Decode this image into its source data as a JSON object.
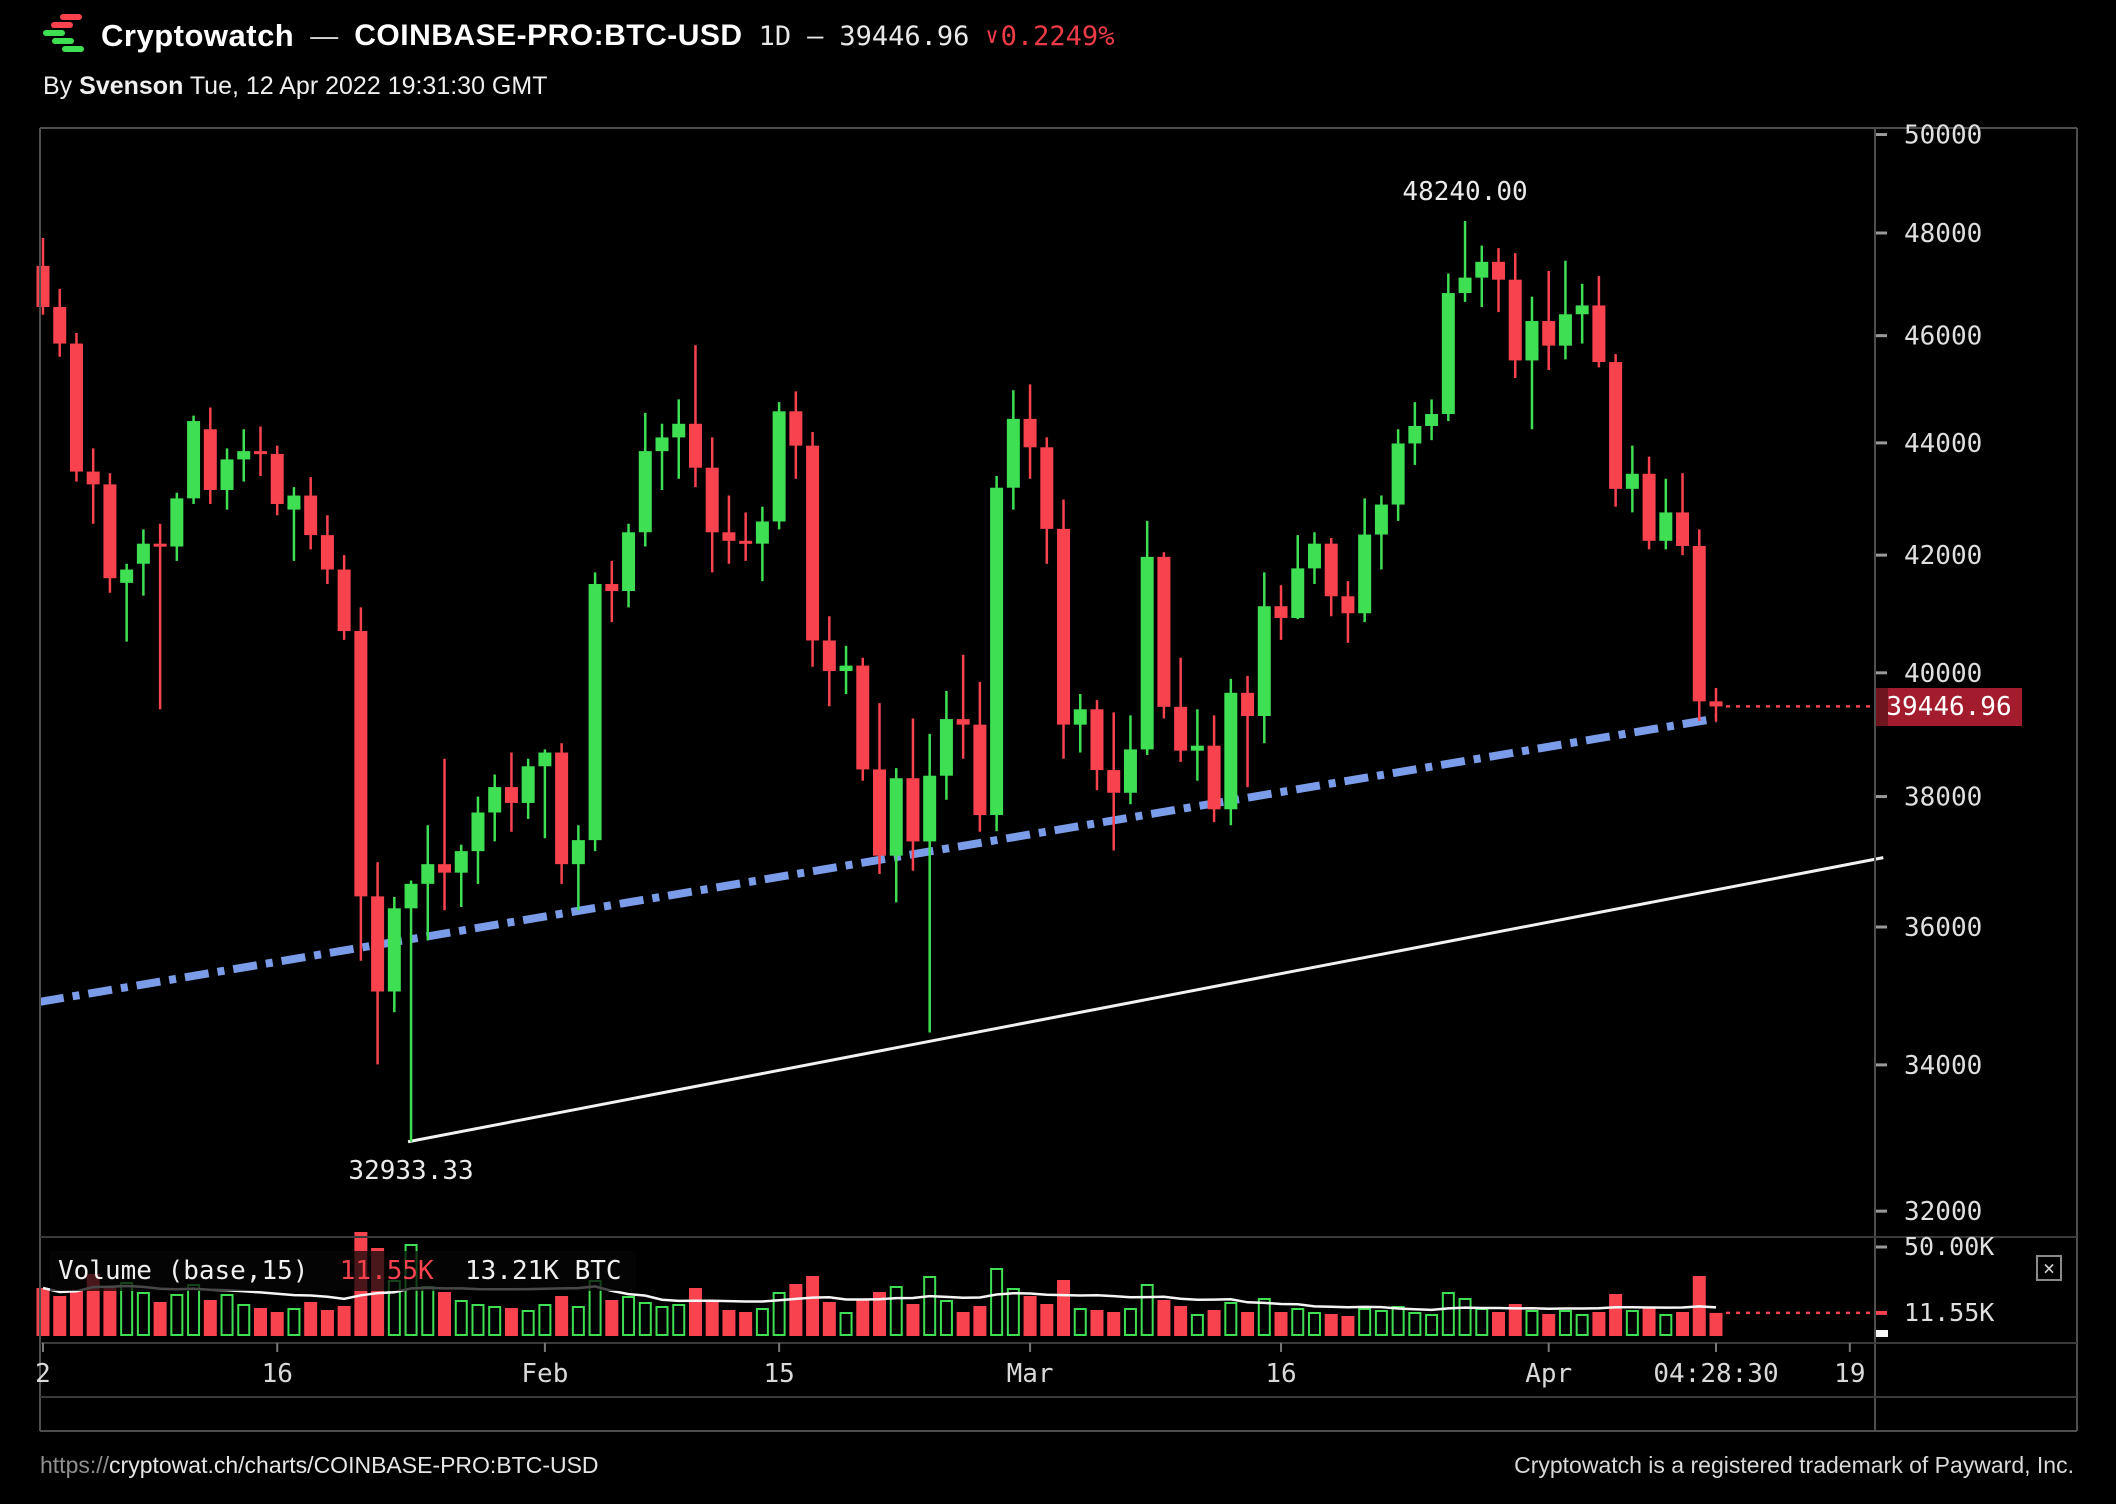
{
  "header": {
    "brand": "Cryptowatch",
    "dash": "—",
    "symbol": "COINBASE-PRO:BTC-USD",
    "interval": "1D",
    "dash2": "—",
    "last_price": "39446.96",
    "change_icon": "∨",
    "change_pct": "0.2249%"
  },
  "byline": {
    "by": "By",
    "author": "Svenson",
    "timestamp": " Tue, 12 Apr 2022 19:31:30 GMT"
  },
  "annotations": {
    "high_label": "48240.00",
    "low_label": "32933.33"
  },
  "volume_legend": {
    "title": "Volume (base,15)",
    "current": "11.55K",
    "ma": "13.21K BTC"
  },
  "volume_axis": {
    "top_label": "50.00K",
    "current_label": "11.55K"
  },
  "price_badge": {
    "value": "39446.96"
  },
  "icons": {
    "close": "×",
    "chevron_down": "∨"
  },
  "footer": {
    "url_scheme": "https://",
    "url_path": "cryptowat.ch/charts/COINBASE-PRO:BTC-USD",
    "trademark": "Cryptowatch is a registered trademark of Payward, Inc."
  },
  "colors": {
    "up": "#3EDF52",
    "down": "#F8424E",
    "trend_blue": "#7B9CE8",
    "trend_white": "#F2F2F2",
    "badge_bg": "#A31C2D",
    "badge_edge": "#6E1520",
    "red_text": "#ED3B47",
    "axis_text": "#DFDFDF",
    "frame": "#4E4E4E",
    "grid_line": "#3A3A3A",
    "tick": "#9A9A9A",
    "ma_line": "#F5F5F5"
  },
  "chart_data": {
    "type": "candlestick",
    "exchange_pair": "COINBASE-PRO:BTC-USD",
    "interval": "1D",
    "start_date": "2022-01-02",
    "end_date": "2022-04-12",
    "price_scale": "log",
    "price_axis_ticks": [
      50000,
      48000,
      46000,
      44000,
      42000,
      40000,
      38000,
      36000,
      34000,
      32000
    ],
    "current_price": 39446.96,
    "change_pct_down": 0.2249,
    "high_annotation": {
      "text": "48240.00",
      "price": 48240.0,
      "candle_index": 85
    },
    "low_annotation": {
      "text": "32933.33",
      "price": 32933.33,
      "candle_index": 22
    },
    "x_labels": [
      {
        "text": "2",
        "candle_index": 0
      },
      {
        "text": "16",
        "candle_index": 14
      },
      {
        "text": "Feb",
        "candle_index": 30
      },
      {
        "text": "15",
        "candle_index": 44
      },
      {
        "text": "Mar",
        "candle_index": 59
      },
      {
        "text": "16",
        "candle_index": 74
      },
      {
        "text": "Apr",
        "candle_index": 90
      },
      {
        "text": "04:28:30",
        "candle_index": 100
      },
      {
        "text": "19",
        "candle_index": 108
      }
    ],
    "trendlines": [
      {
        "name": "support-dashdot",
        "color_key": "trend_blue",
        "from_index": 0,
        "from_price": 34900,
        "to_index": 100,
        "to_price": 39250,
        "style": "dash-dot",
        "width": 8
      },
      {
        "name": "lower-white",
        "color_key": "trend_white",
        "from_index": 22,
        "from_price": 32933.33,
        "to_index": 110,
        "to_price": 37050,
        "style": "solid",
        "width": 3
      }
    ],
    "volume": {
      "ma_period": 15,
      "current": 11.55,
      "ma_current": 13.21,
      "unit": "K BTC",
      "scale_max_label": 50.0,
      "values_k": [
        24,
        20,
        23,
        31,
        25,
        27,
        22,
        17,
        21,
        26,
        18,
        21,
        16,
        14,
        12,
        14,
        17,
        13,
        15,
        52,
        44,
        28,
        46,
        25,
        22,
        18,
        16,
        15,
        14,
        13,
        16,
        20,
        15,
        28,
        18,
        20,
        17,
        15,
        16,
        24,
        18,
        13,
        12,
        14,
        22,
        26,
        30,
        17,
        12,
        18,
        22,
        25,
        16,
        30,
        18,
        12,
        15,
        34,
        24,
        20,
        16,
        28,
        14,
        13,
        12,
        14,
        26,
        18,
        15,
        11,
        13,
        17,
        12,
        19,
        12,
        14,
        12,
        11,
        10,
        14,
        13,
        15,
        12,
        11,
        22,
        19,
        14,
        12,
        16,
        13,
        11,
        13,
        11,
        12,
        21,
        13,
        14,
        11,
        12,
        30,
        11.55
      ]
    },
    "ohlc": [
      [
        47350,
        47900,
        46400,
        46550
      ],
      [
        46550,
        46900,
        45600,
        45850
      ],
      [
        45850,
        46050,
        43300,
        43480
      ],
      [
        43480,
        43900,
        42550,
        43250
      ],
      [
        43250,
        43450,
        41350,
        41600
      ],
      [
        41520,
        41850,
        40520,
        41750
      ],
      [
        41850,
        42450,
        41300,
        42200
      ],
      [
        42200,
        42550,
        39400,
        42150
      ],
      [
        42150,
        43100,
        41900,
        43000
      ],
      [
        43000,
        44500,
        42900,
        44400
      ],
      [
        44250,
        44650,
        42900,
        43150
      ],
      [
        43150,
        43900,
        42800,
        43700
      ],
      [
        43700,
        44250,
        43300,
        43850
      ],
      [
        43850,
        44300,
        43400,
        43800
      ],
      [
        43800,
        43950,
        42700,
        42900
      ],
      [
        42800,
        43200,
        41900,
        43050
      ],
      [
        43050,
        43380,
        42100,
        42350
      ],
      [
        42350,
        42700,
        41500,
        41750
      ],
      [
        41750,
        42000,
        40550,
        40700
      ],
      [
        40700,
        41100,
        35500,
        36460
      ],
      [
        36460,
        36980,
        34008,
        35050
      ],
      [
        35050,
        36450,
        34750,
        36280
      ],
      [
        36280,
        36700,
        32933.33,
        36650
      ],
      [
        36650,
        37550,
        35800,
        36950
      ],
      [
        36950,
        38600,
        36250,
        36820
      ],
      [
        36820,
        37250,
        36300,
        37150
      ],
      [
        37150,
        38000,
        36650,
        37750
      ],
      [
        37750,
        38350,
        37300,
        38150
      ],
      [
        38150,
        38700,
        37450,
        37900
      ],
      [
        37900,
        38600,
        37650,
        38480
      ],
      [
        38480,
        38750,
        37350,
        38700
      ],
      [
        38700,
        38850,
        36650,
        36950
      ],
      [
        36950,
        37550,
        36250,
        37320
      ],
      [
        37320,
        41700,
        37150,
        41500
      ],
      [
        41500,
        41900,
        40850,
        41380
      ],
      [
        41380,
        42550,
        41100,
        42400
      ],
      [
        42400,
        44550,
        42150,
        43850
      ],
      [
        43850,
        44350,
        43150,
        44100
      ],
      [
        44100,
        44800,
        43350,
        44350
      ],
      [
        44350,
        45821,
        43200,
        43550
      ],
      [
        43550,
        44100,
        41700,
        42400
      ],
      [
        42400,
        43050,
        41850,
        42250
      ],
      [
        42250,
        42750,
        41900,
        42200
      ],
      [
        42200,
        42850,
        41550,
        42590
      ],
      [
        42590,
        44750,
        42450,
        44580
      ],
      [
        44580,
        44950,
        43350,
        43950
      ],
      [
        43950,
        44200,
        40100,
        40540
      ],
      [
        40540,
        40950,
        39450,
        40030
      ],
      [
        40030,
        40450,
        39650,
        40120
      ],
      [
        40120,
        40250,
        38250,
        38430
      ],
      [
        38430,
        39500,
        36800,
        37080
      ],
      [
        37080,
        38450,
        36370,
        38290
      ],
      [
        38290,
        39250,
        36850,
        37300
      ],
      [
        37300,
        39000,
        34459,
        38330
      ],
      [
        38330,
        39700,
        37950,
        39240
      ],
      [
        39240,
        40300,
        38600,
        39150
      ],
      [
        39150,
        39850,
        37450,
        37710
      ],
      [
        37710,
        43400,
        37460,
        43190
      ],
      [
        43190,
        44970,
        42800,
        44440
      ],
      [
        44440,
        45080,
        43350,
        43920
      ],
      [
        43920,
        44100,
        41850,
        42460
      ],
      [
        42460,
        42980,
        38600,
        39150
      ],
      [
        39150,
        39650,
        38700,
        39400
      ],
      [
        39400,
        39550,
        38100,
        38420
      ],
      [
        38420,
        39350,
        37160,
        38060
      ],
      [
        38060,
        39300,
        37880,
        38750
      ],
      [
        38750,
        42600,
        38660,
        41970
      ],
      [
        41970,
        42050,
        39250,
        39440
      ],
      [
        39440,
        40250,
        38550,
        38730
      ],
      [
        38730,
        39400,
        38250,
        38810
      ],
      [
        38810,
        39300,
        37600,
        37800
      ],
      [
        37800,
        39900,
        37550,
        39670
      ],
      [
        39670,
        39950,
        38150,
        39290
      ],
      [
        39290,
        41700,
        38850,
        41120
      ],
      [
        41120,
        41480,
        40550,
        40920
      ],
      [
        40920,
        42350,
        40900,
        41770
      ],
      [
        41770,
        42400,
        41500,
        42200
      ],
      [
        42200,
        42300,
        40950,
        41290
      ],
      [
        41290,
        41550,
        40500,
        41000
      ],
      [
        41000,
        43000,
        40850,
        42360
      ],
      [
        42360,
        43050,
        41750,
        42890
      ],
      [
        42890,
        44250,
        42600,
        43990
      ],
      [
        43990,
        44750,
        43600,
        44310
      ],
      [
        44310,
        44800,
        44050,
        44530
      ],
      [
        44530,
        47200,
        44400,
        46820
      ],
      [
        46820,
        48240,
        46650,
        47120
      ],
      [
        47120,
        47750,
        46550,
        47430
      ],
      [
        47430,
        47700,
        46450,
        47080
      ],
      [
        47080,
        47600,
        45200,
        45530
      ],
      [
        45530,
        46750,
        44250,
        46280
      ],
      [
        46280,
        47250,
        45350,
        45810
      ],
      [
        45810,
        47450,
        45550,
        46410
      ],
      [
        46410,
        47000,
        45850,
        46580
      ],
      [
        46580,
        47150,
        45400,
        45500
      ],
      [
        45500,
        45650,
        42850,
        43170
      ],
      [
        43170,
        43950,
        42750,
        43440
      ],
      [
        43440,
        43750,
        42100,
        42250
      ],
      [
        42250,
        43350,
        42100,
        42750
      ],
      [
        42750,
        43450,
        42000,
        42160
      ],
      [
        42160,
        42450,
        39210,
        39530
      ],
      [
        39530,
        39750,
        39200,
        39446.96
      ]
    ]
  }
}
